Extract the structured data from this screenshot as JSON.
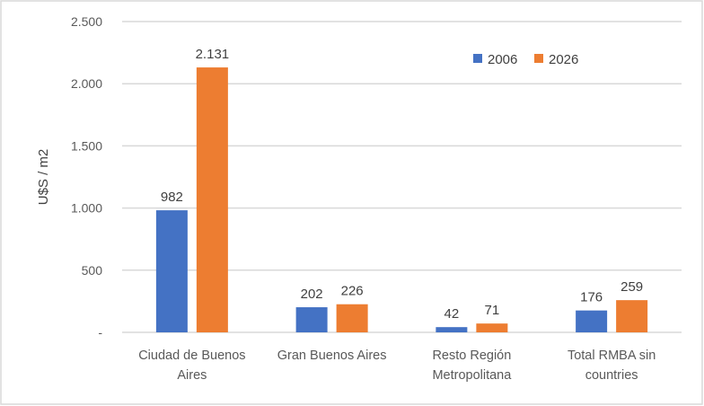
{
  "chart_data": {
    "type": "bar",
    "ylabel": "U$S / m2",
    "xlabel": "",
    "ylim": [
      0,
      2500
    ],
    "yticks": [
      0,
      500,
      1000,
      1500,
      2000,
      2500
    ],
    "ytick_labels": [
      "-",
      "500",
      "1.000",
      "1.500",
      "2.000",
      "2.500"
    ],
    "grid": true,
    "legend_position": "top-right",
    "categories": [
      [
        "Ciudad de Buenos",
        "Aires"
      ],
      [
        "Gran Buenos Aires"
      ],
      [
        "Resto Región",
        "Metropolitana"
      ],
      [
        "Total RMBA sin",
        "countries"
      ]
    ],
    "series": [
      {
        "name": "2006",
        "color": "#4472C4",
        "values": [
          982,
          202,
          42,
          176
        ],
        "labels": [
          "982",
          "202",
          "42",
          "176"
        ]
      },
      {
        "name": "2026",
        "color": "#ED7D31",
        "values": [
          2131,
          226,
          71,
          259
        ],
        "labels": [
          "2.131",
          "226",
          "71",
          "259"
        ]
      }
    ]
  }
}
